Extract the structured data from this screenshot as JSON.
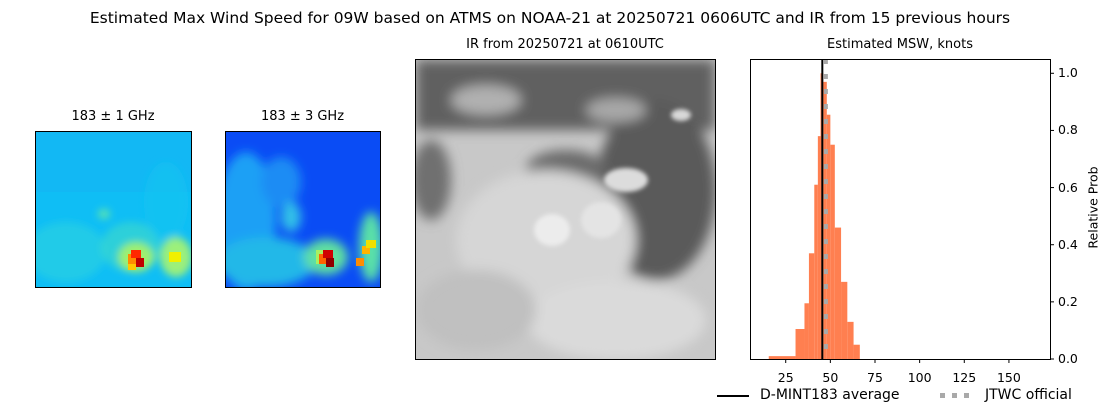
{
  "figure": {
    "suptitle": "Estimated Max Wind Speed for 09W based on ATMS on NOAA-21 at 20250721 0606UTC and IR from 15 previous hours"
  },
  "panels": {
    "mw1": {
      "title": "183 ± 1 GHz"
    },
    "mw2": {
      "title": "183 ± 3 GHz"
    },
    "ir": {
      "title": "IR from 20250721 at 0610UTC"
    },
    "hist": {
      "title": "Estimated MSW, knots",
      "ylabel": "Relative Prob"
    }
  },
  "legend": {
    "items": [
      {
        "label": "D-MINT183 average",
        "style": "solid-black"
      },
      {
        "label": "JTWC official",
        "style": "dotted-gray"
      }
    ]
  },
  "colors": {
    "bar": "#ff7f50",
    "average_line": "#000000",
    "jtwc_line": "#a9a9a9"
  },
  "chart_data": {
    "type": "bar",
    "title": "Estimated MSW, knots",
    "xlabel": "",
    "ylabel": "Relative Prob",
    "xlim": [
      5,
      173
    ],
    "ylim": [
      0,
      1.05
    ],
    "xticks": [
      25,
      50,
      75,
      100,
      125,
      150
    ],
    "yticks": [
      0.0,
      0.2,
      0.4,
      0.6,
      0.8,
      1.0
    ],
    "ytick_labels": [
      "0.0",
      "0.2",
      "0.4",
      "0.6",
      "0.8",
      "1.0"
    ],
    "y_axis_side": "right",
    "grid": false,
    "bins": [
      {
        "x0": 15.5,
        "x1": 30.5,
        "value": 0.01
      },
      {
        "x0": 30.5,
        "x1": 35.5,
        "value": 0.105
      },
      {
        "x0": 35.5,
        "x1": 38.0,
        "value": 0.195
      },
      {
        "x0": 38.0,
        "x1": 41.0,
        "value": 0.37
      },
      {
        "x0": 41.0,
        "x1": 43.0,
        "value": 0.61
      },
      {
        "x0": 43.0,
        "x1": 44.5,
        "value": 0.78
      },
      {
        "x0": 44.5,
        "x1": 46.0,
        "value": 1.0
      },
      {
        "x0": 46.0,
        "x1": 48.0,
        "value": 0.97
      },
      {
        "x0": 48.0,
        "x1": 50.0,
        "value": 0.855
      },
      {
        "x0": 50.0,
        "x1": 52.5,
        "value": 0.75
      },
      {
        "x0": 52.5,
        "x1": 56.0,
        "value": 0.46
      },
      {
        "x0": 56.0,
        "x1": 59.5,
        "value": 0.27
      },
      {
        "x0": 59.5,
        "x1": 63.0,
        "value": 0.13
      },
      {
        "x0": 63.0,
        "x1": 66.5,
        "value": 0.05
      }
    ],
    "vlines": [
      {
        "name": "D-MINT183 average",
        "x": 45.5,
        "style": "solid",
        "color": "#000000"
      },
      {
        "name": "JTWC official",
        "x": 47.5,
        "style": "dotted",
        "color": "#a9a9a9"
      }
    ],
    "legend_position": "below-right"
  }
}
